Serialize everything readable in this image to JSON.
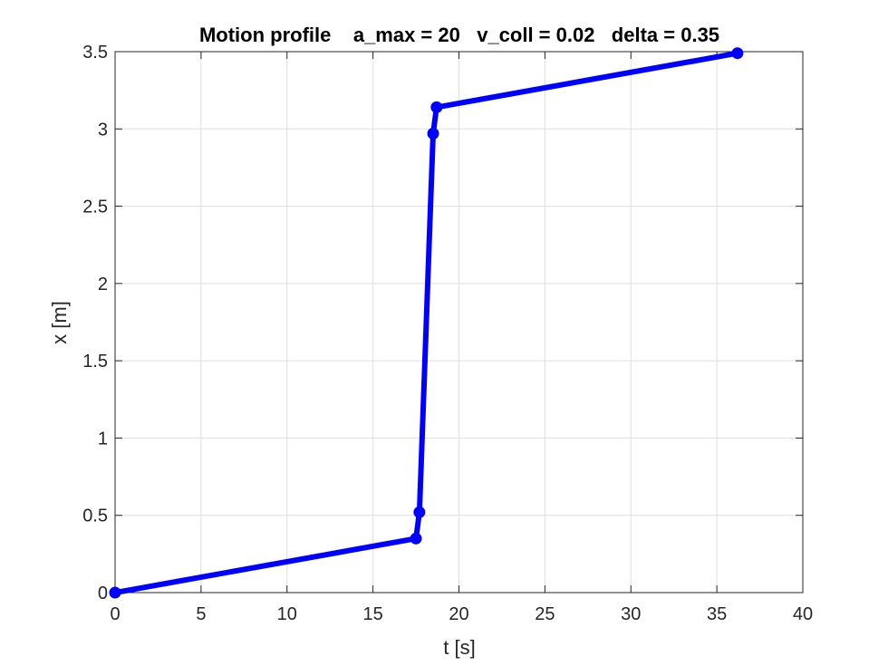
{
  "chart_data": {
    "type": "line",
    "title": "Motion profile    a_max = 20   v_coll = 0.02   delta = 0.35",
    "xlabel": "t [s]",
    "ylabel": "x [m]",
    "xlim": [
      0,
      40
    ],
    "ylim": [
      0,
      3.5
    ],
    "x_ticks": [
      "0",
      "5",
      "10",
      "15",
      "20",
      "25",
      "30",
      "35",
      "40"
    ],
    "y_ticks": [
      "0",
      "0.5",
      "1",
      "1.5",
      "2",
      "2.5",
      "3",
      "3.5"
    ],
    "grid": true,
    "series": [
      {
        "color": "#0000ff",
        "marker": "filled-circle",
        "x": [
          0,
          17.5,
          17.7,
          18.5,
          18.7,
          36.2
        ],
        "y": [
          0,
          0.35,
          0.52,
          2.97,
          3.14,
          3.49
        ]
      }
    ]
  }
}
